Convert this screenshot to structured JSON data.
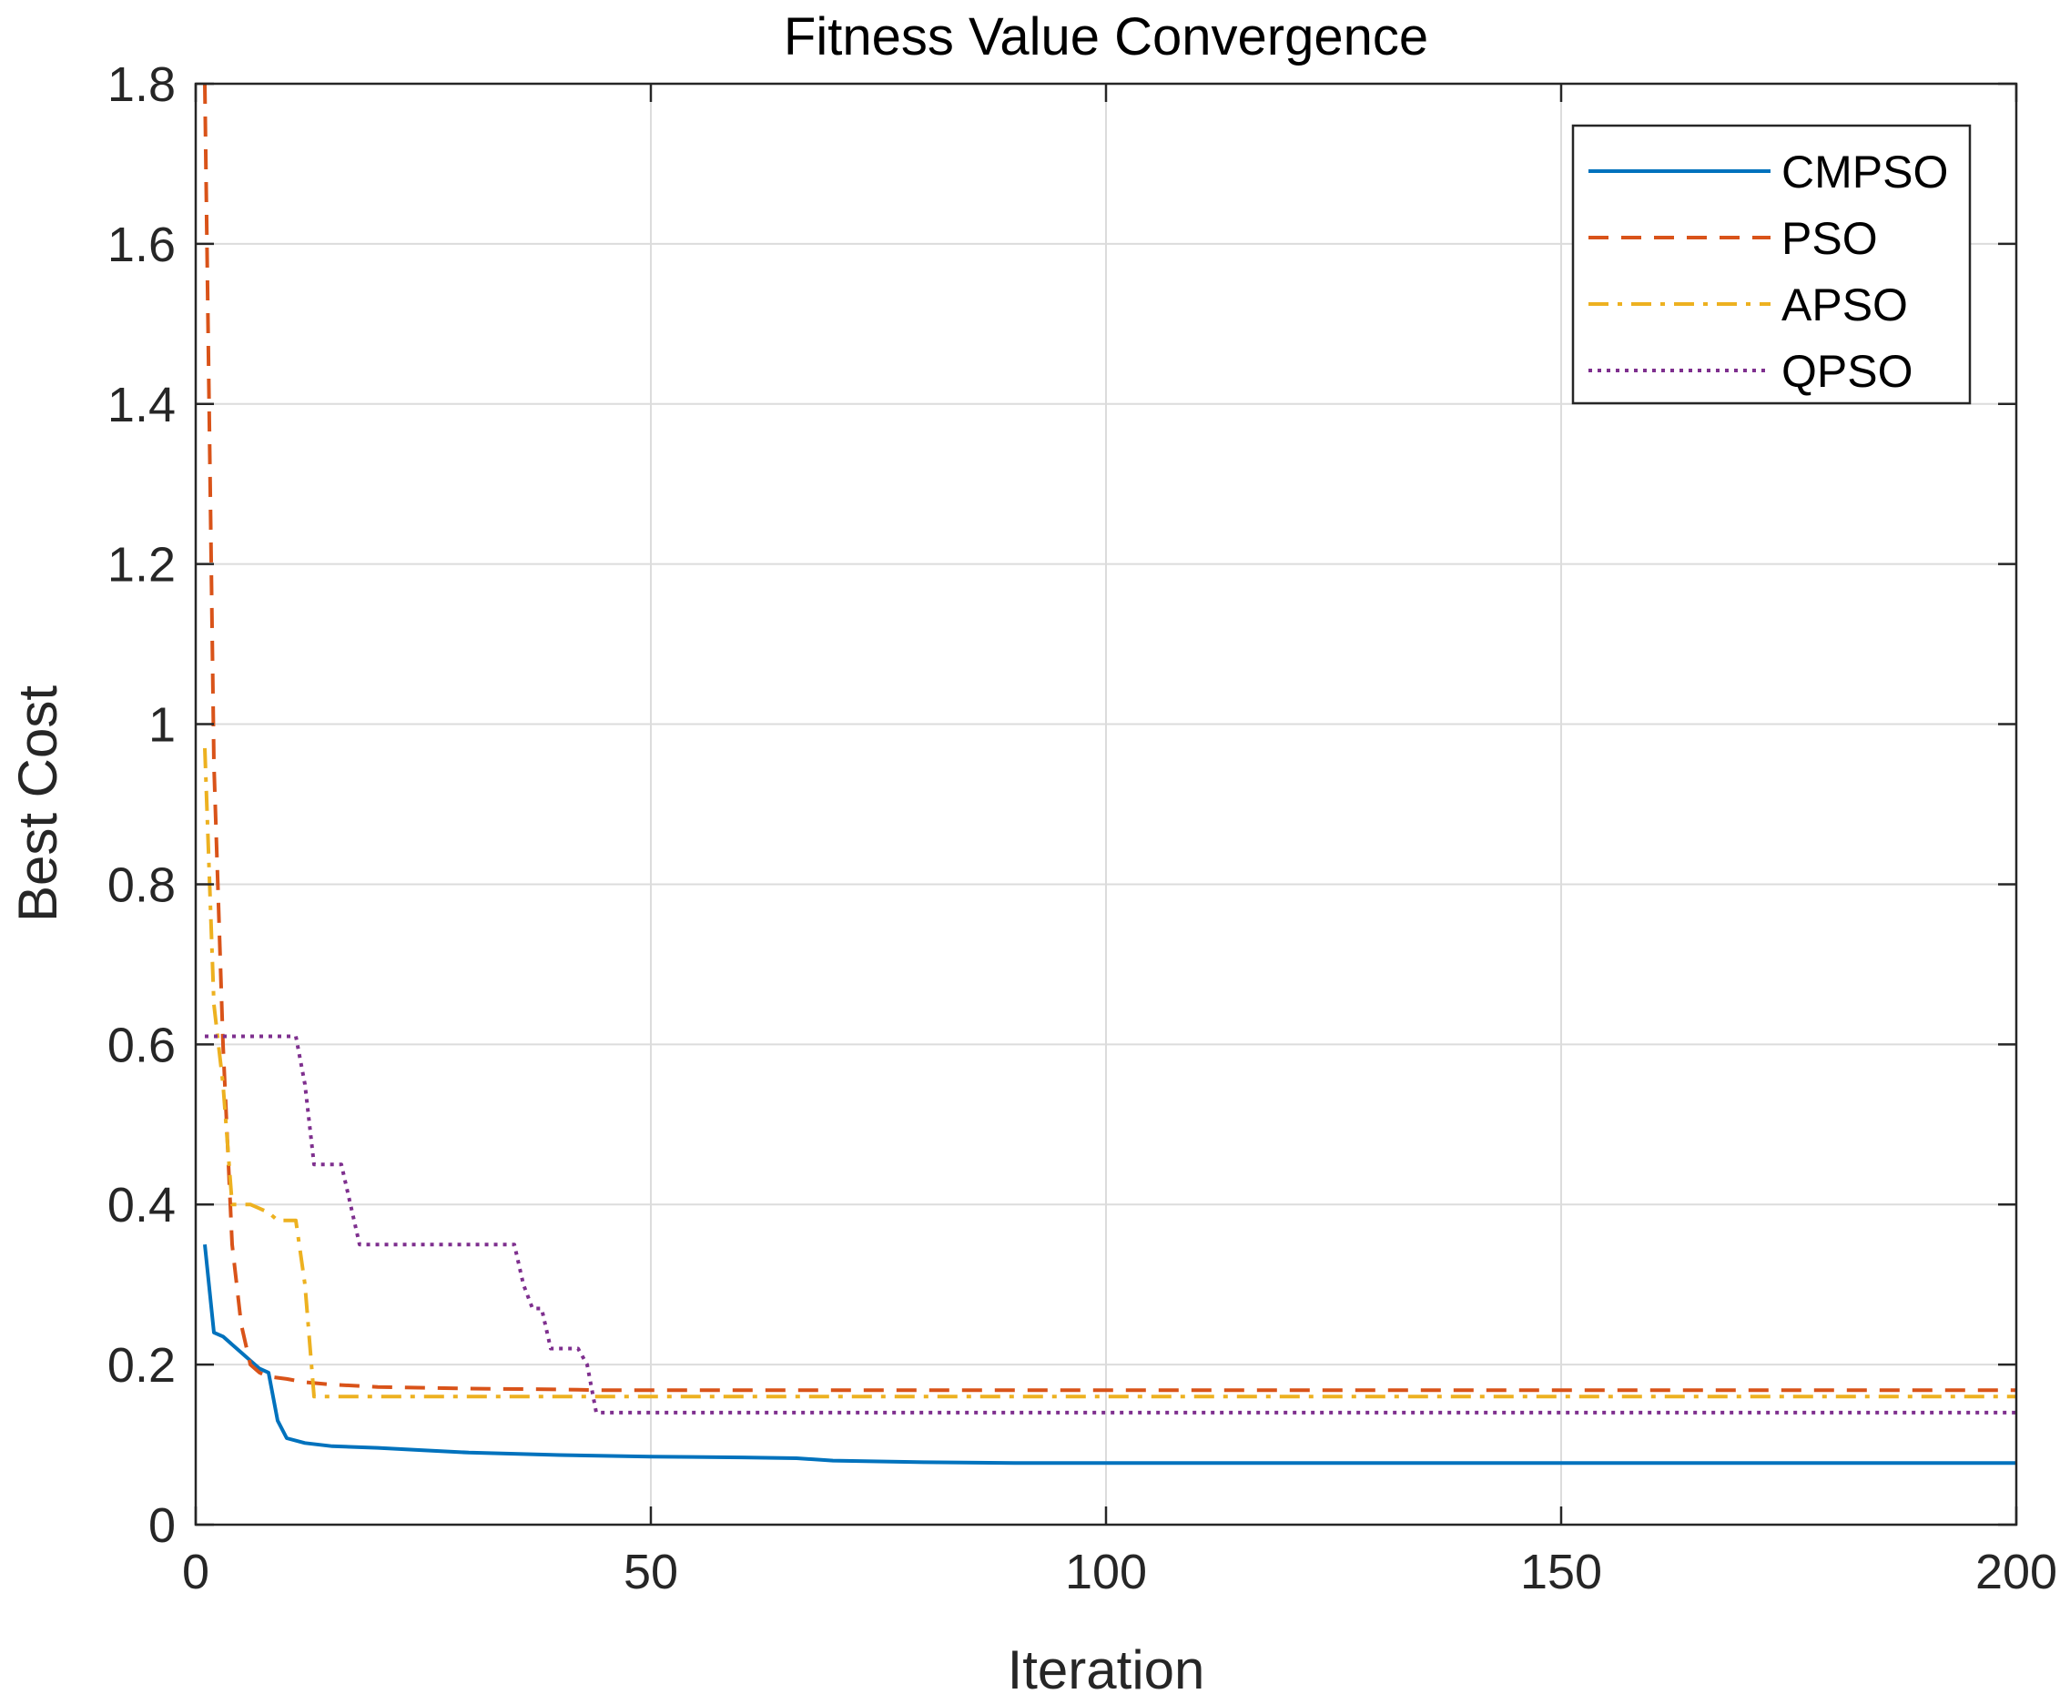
{
  "chart_data": {
    "type": "line",
    "title": "Fitness Value Convergence",
    "xlabel": "Iteration",
    "ylabel": "Best Cost",
    "xlim": [
      0,
      200
    ],
    "ylim": [
      0,
      1.8
    ],
    "xticks": [
      0,
      50,
      100,
      150,
      200
    ],
    "xtick_labels": [
      "0",
      "50",
      "100",
      "150",
      "200"
    ],
    "yticks": [
      0,
      0.2,
      0.4,
      0.6,
      0.8,
      1,
      1.2,
      1.4,
      1.6,
      1.8
    ],
    "ytick_labels": [
      "0",
      "0.2",
      "0.4",
      "0.6",
      "0.8",
      "1",
      "1.2",
      "1.4",
      "1.6",
      "1.8"
    ],
    "grid": true,
    "legend_position": "top-right",
    "series": [
      {
        "name": "CMPSO",
        "color": "#0072BD",
        "dash": "solid",
        "x": [
          1,
          2,
          3,
          4,
          5,
          6,
          7,
          8,
          9,
          10,
          12,
          15,
          20,
          25,
          30,
          40,
          50,
          60,
          66,
          70,
          80,
          90,
          100,
          150,
          200
        ],
        "y": [
          0.35,
          0.24,
          0.235,
          0.225,
          0.215,
          0.205,
          0.195,
          0.19,
          0.13,
          0.108,
          0.102,
          0.098,
          0.096,
          0.093,
          0.09,
          0.087,
          0.085,
          0.084,
          0.083,
          0.08,
          0.078,
          0.077,
          0.077,
          0.077,
          0.077
        ]
      },
      {
        "name": "PSO",
        "color": "#D95319",
        "dash": "dashed",
        "x": [
          1,
          2,
          3,
          4,
          5,
          6,
          7,
          8,
          10,
          12,
          15,
          20,
          30,
          40,
          45,
          50,
          100,
          150,
          200
        ],
        "y": [
          1.8,
          0.95,
          0.6,
          0.35,
          0.25,
          0.2,
          0.19,
          0.185,
          0.182,
          0.178,
          0.175,
          0.172,
          0.17,
          0.169,
          0.168,
          0.168,
          0.168,
          0.168,
          0.168
        ]
      },
      {
        "name": "APSO",
        "color": "#EDB120",
        "dash": "dashdot",
        "x": [
          1,
          2,
          3,
          4,
          5,
          6,
          7,
          8,
          9,
          10,
          11,
          12,
          13,
          20,
          50,
          100,
          150,
          200
        ],
        "y": [
          0.97,
          0.65,
          0.55,
          0.4,
          0.4,
          0.4,
          0.395,
          0.39,
          0.38,
          0.38,
          0.38,
          0.3,
          0.16,
          0.16,
          0.16,
          0.16,
          0.16,
          0.16
        ]
      },
      {
        "name": "QPSO",
        "color": "#7E2F8E",
        "dash": "dotted",
        "x": [
          1,
          6,
          10,
          11,
          12,
          13,
          14,
          15,
          16,
          17,
          18,
          19,
          20,
          25,
          34,
          35,
          36,
          37,
          38,
          39,
          40,
          41,
          42,
          43,
          44,
          45,
          50,
          100,
          150,
          200
        ],
        "y": [
          0.61,
          0.61,
          0.61,
          0.61,
          0.55,
          0.45,
          0.45,
          0.45,
          0.45,
          0.4,
          0.35,
          0.35,
          0.35,
          0.35,
          0.35,
          0.35,
          0.3,
          0.27,
          0.27,
          0.22,
          0.22,
          0.22,
          0.22,
          0.2,
          0.14,
          0.14,
          0.14,
          0.14,
          0.14,
          0.14
        ]
      }
    ]
  }
}
